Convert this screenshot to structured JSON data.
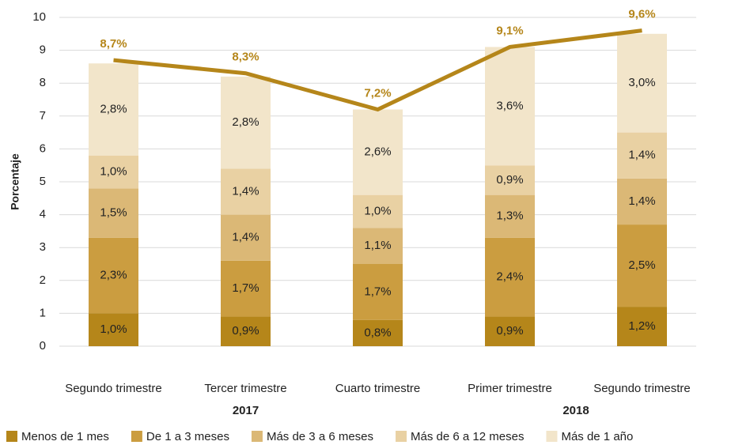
{
  "chart_data": {
    "type": "stacked_bar_line",
    "y_label": "Porcentaje",
    "categories": [
      "Segundo trimestre",
      "Tercer trimestre",
      "Cuarto trimestre",
      "Primer trimestre",
      "Segundo trimestre"
    ],
    "x_groups": [
      {
        "label": "2017",
        "categories": [
          "Segundo trimestre",
          "Tercer trimestre",
          "Cuarto trimestre"
        ]
      },
      {
        "label": "2018",
        "categories": [
          "Primer trimestre",
          "Segundo trimestre"
        ]
      }
    ],
    "series": [
      {
        "name": "Menos de 1 mes",
        "color": "#b5861a",
        "values": [
          1.0,
          0.9,
          0.8,
          0.9,
          1.2
        ],
        "value_labels": [
          "1,0%",
          "0,9%",
          "0,8%",
          "0,9%",
          "1,2%"
        ]
      },
      {
        "name": "De 1 a 3 meses",
        "color": "#cb9d40",
        "values": [
          2.3,
          1.7,
          1.7,
          2.4,
          2.5
        ],
        "value_labels": [
          "2,3%",
          "1,7%",
          "1,7%",
          "2,4%",
          "2,5%"
        ]
      },
      {
        "name": "Más de 3 a 6 meses",
        "color": "#dbb876",
        "values": [
          1.5,
          1.4,
          1.1,
          1.3,
          1.4
        ],
        "value_labels": [
          "1,5%",
          "1,4%",
          "1,1%",
          "1,3%",
          "1,4%"
        ]
      },
      {
        "name": "Más de 6 a 12 meses",
        "color": "#e9d1a3",
        "values": [
          1.0,
          1.4,
          1.0,
          0.9,
          1.4
        ],
        "value_labels": [
          "1,0%",
          "1,4%",
          "1,0%",
          "0,9%",
          "1,4%"
        ]
      },
      {
        "name": "Más de 1 año",
        "color": "#f2e5ca",
        "values": [
          2.8,
          2.8,
          2.6,
          3.6,
          3.0
        ],
        "value_labels": [
          "2,8%",
          "2,8%",
          "2,6%",
          "3,6%",
          "3,0%"
        ]
      }
    ],
    "line": {
      "color": "#b5861a",
      "values": [
        8.7,
        8.3,
        7.2,
        9.1,
        9.6
      ],
      "value_labels": [
        "8,7%",
        "8,3%",
        "7,2%",
        "9,1%",
        "9,6%"
      ]
    },
    "ylim": [
      0,
      10
    ],
    "yticks": [
      0,
      1,
      2,
      3,
      4,
      5,
      6,
      7,
      8,
      9,
      10
    ],
    "grid": true
  }
}
